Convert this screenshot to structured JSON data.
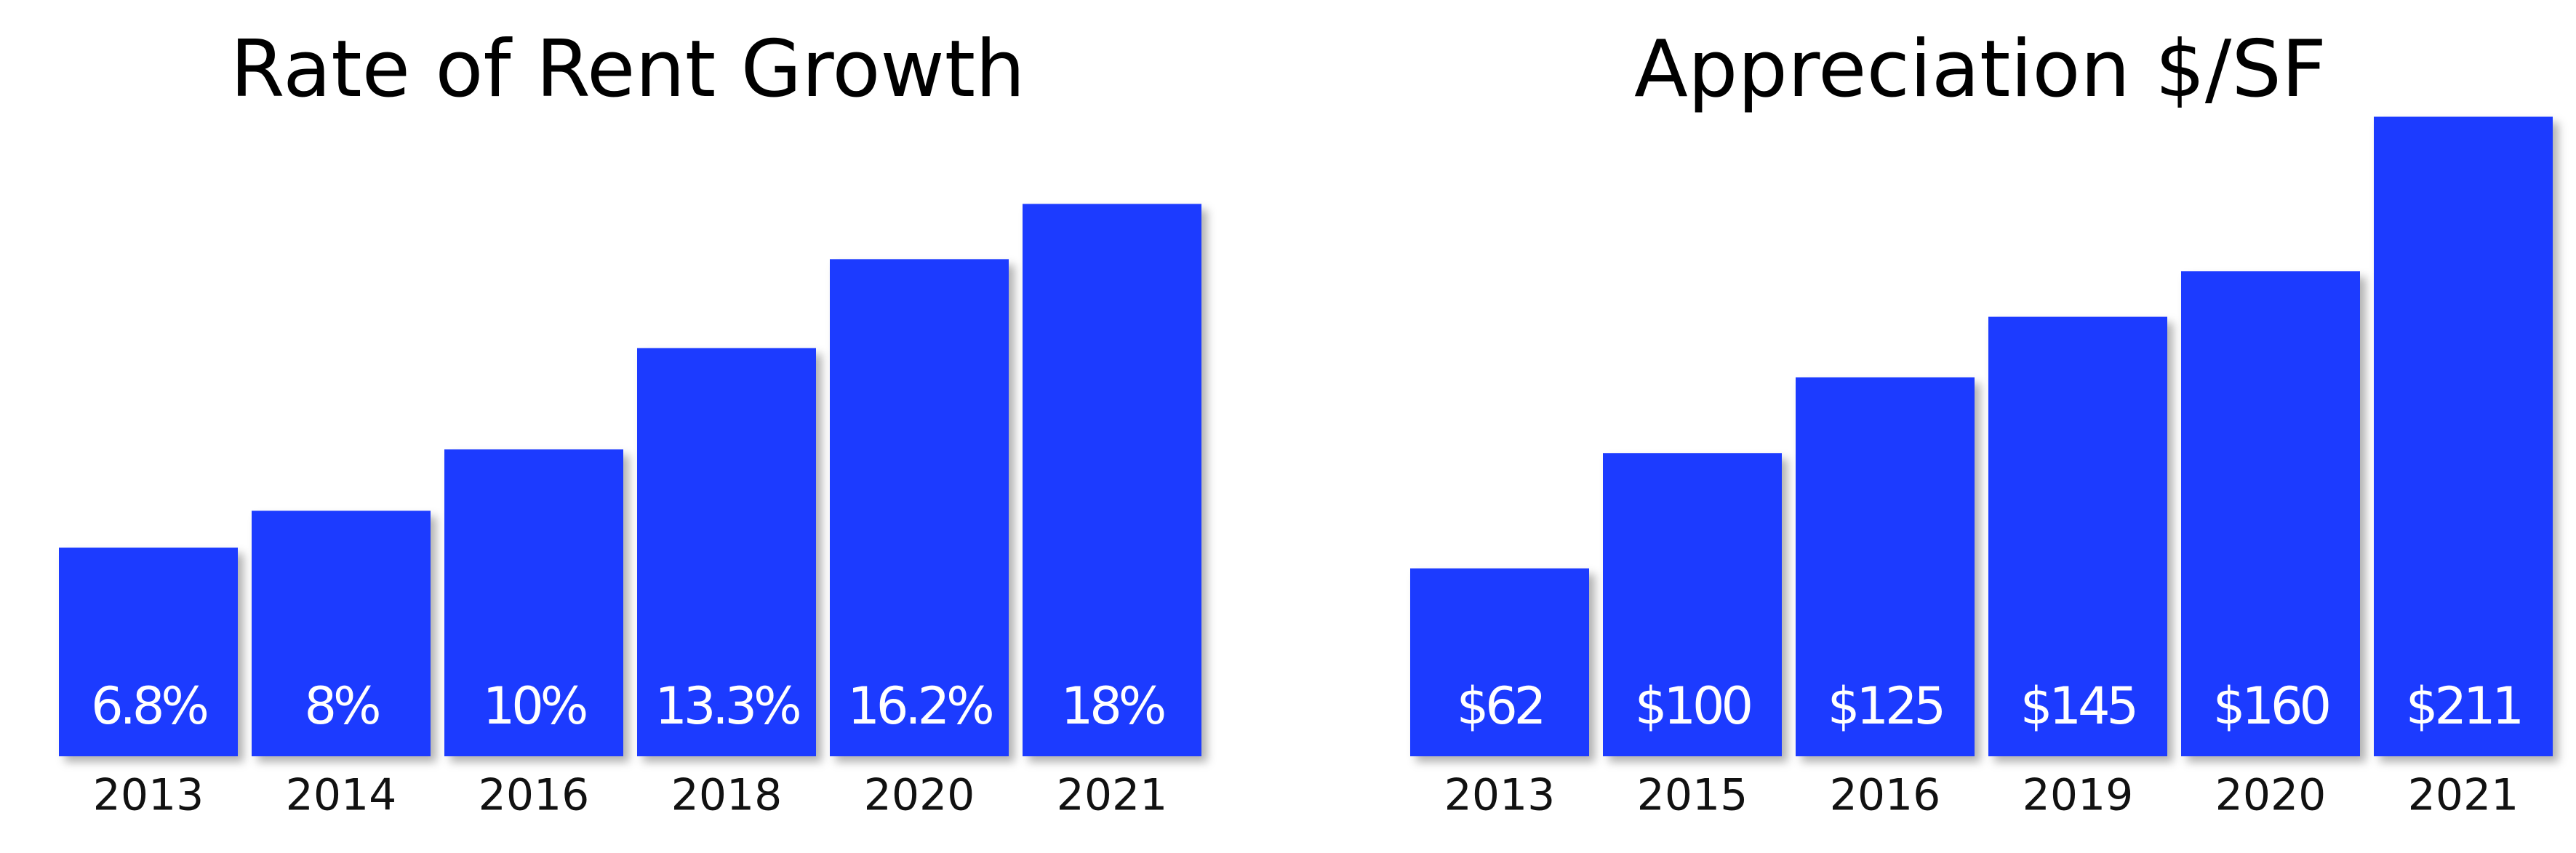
{
  "chart_data": [
    {
      "type": "bar",
      "title": "Rate of Rent Growth",
      "categories": [
        "2013",
        "2014",
        "2016",
        "2018",
        "2020",
        "2021"
      ],
      "values": [
        6.8,
        8,
        10,
        13.3,
        16.2,
        18
      ],
      "value_labels": [
        "6.8%",
        "8%",
        "10%",
        "13.3%",
        "16.2%",
        "18%"
      ],
      "color": "#1f3bff",
      "ylim": [
        0,
        20
      ]
    },
    {
      "type": "bar",
      "title": "Appreciation $/SF",
      "categories": [
        "2013",
        "2015",
        "2016",
        "2019",
        "2020",
        "2021"
      ],
      "values": [
        62,
        100,
        125,
        145,
        160,
        211
      ],
      "value_labels": [
        "$62",
        "$100",
        "$125",
        "$145",
        "$160",
        "$211"
      ],
      "color": "#1f3bff",
      "ylim": [
        0,
        220
      ]
    }
  ]
}
